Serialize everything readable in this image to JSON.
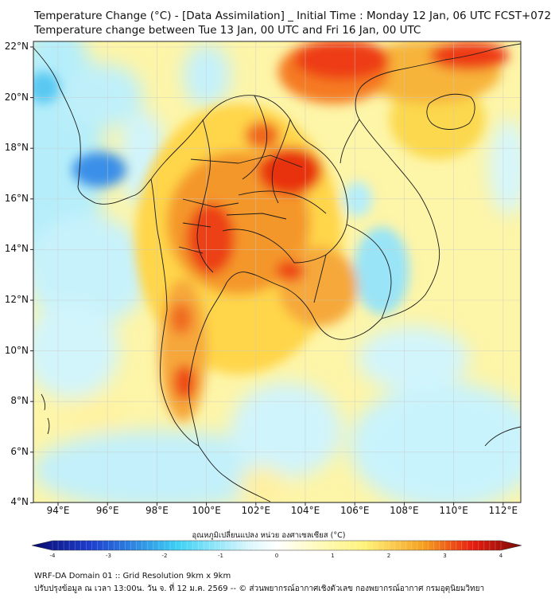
{
  "title_line1": "Temperature Change (°C) - [Data Assimilation] _ Initial Time : Monday 12 Jan, 06 UTC FCST+072",
  "title_line2": "Temperature change between Tue 13 Jan, 00 UTC and Fri 16 Jan, 00 UTC",
  "lat_labels": [
    "22°N",
    "20°N",
    "18°N",
    "16°N",
    "14°N",
    "12°N",
    "10°N",
    "8°N",
    "6°N",
    "4°N"
  ],
  "lon_labels": [
    "94°E",
    "96°E",
    "98°E",
    "100°E",
    "102°E",
    "104°E",
    "106°E",
    "108°E",
    "110°E",
    "112°E"
  ],
  "colorbar": {
    "title": "อุณหภูมิเปลี่ยนแปลง หน่วย องศาเซลเซียส (°C)",
    "ticks": [
      "-4",
      "-3",
      "-2",
      "-1",
      "0",
      "1",
      "2",
      "3",
      "4"
    ],
    "colors": {
      "min": "#08086e",
      "blue": "#1e5fe0",
      "cyan": "#3fd2f5",
      "pale": "#d8f6fd",
      "white": "#ffffff",
      "yellow": "#fff27a",
      "orange": "#f5a020",
      "red": "#e81e10",
      "max": "#7a0a08"
    }
  },
  "footer_line1": "WRF-DA Domain 01 :: Grid Resolution 9km x 9km",
  "footer_line2": "ปรับปรุงข้อมูล ณ เวลา 13:00น. วัน จ. ที่ 12 ม.ค. 2569 -- © ส่วนพยากรณ์อากาศเชิงตัวเลข กองพยากรณ์อากาศ กรมอุตุนิยมวิทยา"
}
